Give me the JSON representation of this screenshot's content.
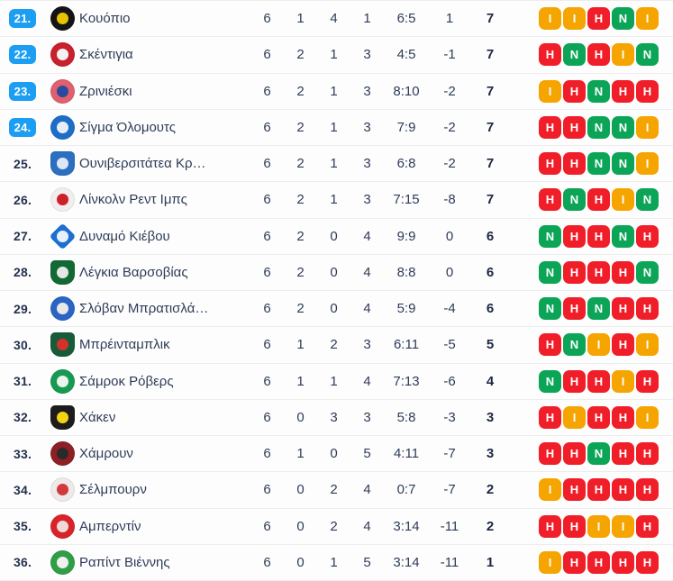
{
  "colors": {
    "win": "#0ca558",
    "draw": "#f5a400",
    "loss": "#f01e28",
    "position_badge": "#1c9ef3"
  },
  "form_letters": {
    "win": "Ν",
    "draw": "Ι",
    "loss": "Η"
  },
  "table": {
    "rows": [
      {
        "position": "21.",
        "highlighted": true,
        "team": "Κουόπιο",
        "played": 6,
        "wins": 1,
        "draws": 4,
        "losses": 1,
        "goals": "6:5",
        "diff": "1",
        "points": 7,
        "form": [
          "draw",
          "draw",
          "loss",
          "win",
          "draw"
        ],
        "logo": {
          "primary": "#141414",
          "secondary": "#e8c400",
          "shape": "circle"
        }
      },
      {
        "position": "22.",
        "highlighted": true,
        "team": "Σκέντιγια",
        "played": 6,
        "wins": 2,
        "draws": 1,
        "losses": 3,
        "goals": "4:5",
        "diff": "-1",
        "points": 7,
        "form": [
          "loss",
          "win",
          "loss",
          "draw",
          "win"
        ],
        "logo": {
          "primary": "#c8202c",
          "secondary": "#f2f2f2",
          "shape": "circle"
        }
      },
      {
        "position": "23.",
        "highlighted": true,
        "team": "Ζρινιέσκι",
        "played": 6,
        "wins": 2,
        "draws": 1,
        "losses": 3,
        "goals": "8:10",
        "diff": "-2",
        "points": 7,
        "form": [
          "draw",
          "loss",
          "win",
          "loss",
          "loss"
        ],
        "logo": {
          "primary": "#e0606e",
          "secondary": "#274a9e",
          "shape": "circle"
        }
      },
      {
        "position": "24.",
        "highlighted": true,
        "team": "Σίγμα Όλομουτς",
        "played": 6,
        "wins": 2,
        "draws": 1,
        "losses": 3,
        "goals": "7:9",
        "diff": "-2",
        "points": 7,
        "form": [
          "loss",
          "loss",
          "win",
          "win",
          "draw"
        ],
        "logo": {
          "primary": "#1e6ec8",
          "secondary": "#e8eef6",
          "shape": "circle"
        }
      },
      {
        "position": "25.",
        "highlighted": false,
        "team": "Ουνιβερσιτάτεα Κρ…",
        "played": 6,
        "wins": 2,
        "draws": 1,
        "losses": 3,
        "goals": "6:8",
        "diff": "-2",
        "points": 7,
        "form": [
          "loss",
          "loss",
          "win",
          "win",
          "draw"
        ],
        "logo": {
          "primary": "#2a6fc0",
          "secondary": "#dce8f5",
          "shape": "shield"
        }
      },
      {
        "position": "26.",
        "highlighted": false,
        "team": "Λίνκολν Ρεντ Ιμπς",
        "played": 6,
        "wins": 2,
        "draws": 1,
        "losses": 3,
        "goals": "7:15",
        "diff": "-8",
        "points": 7,
        "form": [
          "loss",
          "win",
          "loss",
          "draw",
          "win"
        ],
        "logo": {
          "primary": "#f2eeee",
          "secondary": "#cc2128",
          "shape": "circle"
        }
      },
      {
        "position": "27.",
        "highlighted": false,
        "team": "Δυναμό Κιέβου",
        "played": 6,
        "wins": 2,
        "draws": 0,
        "losses": 4,
        "goals": "9:9",
        "diff": "0",
        "points": 6,
        "form": [
          "win",
          "loss",
          "loss",
          "win",
          "loss"
        ],
        "logo": {
          "primary": "#1d6fd2",
          "secondary": "#e8f0fa",
          "shape": "diamond"
        }
      },
      {
        "position": "28.",
        "highlighted": false,
        "team": "Λέγκια Βαρσοβίας",
        "played": 6,
        "wins": 2,
        "draws": 0,
        "losses": 4,
        "goals": "8:8",
        "diff": "0",
        "points": 6,
        "form": [
          "win",
          "loss",
          "loss",
          "loss",
          "win"
        ],
        "logo": {
          "primary": "#116a34",
          "secondary": "#e6e6e6",
          "shape": "shield"
        }
      },
      {
        "position": "29.",
        "highlighted": false,
        "team": "Σλόβαν Μπρατισλά…",
        "played": 6,
        "wins": 2,
        "draws": 0,
        "losses": 4,
        "goals": "5:9",
        "diff": "-4",
        "points": 6,
        "form": [
          "win",
          "loss",
          "win",
          "loss",
          "loss"
        ],
        "logo": {
          "primary": "#2a65c4",
          "secondary": "#e8e8e8",
          "shape": "circle"
        }
      },
      {
        "position": "30.",
        "highlighted": false,
        "team": "Μπρέινταμπλικ",
        "played": 6,
        "wins": 1,
        "draws": 2,
        "losses": 3,
        "goals": "6:11",
        "diff": "-5",
        "points": 5,
        "form": [
          "loss",
          "win",
          "draw",
          "loss",
          "draw"
        ],
        "logo": {
          "primary": "#175c38",
          "secondary": "#d6302c",
          "shape": "shield"
        }
      },
      {
        "position": "31.",
        "highlighted": false,
        "team": "Σάμροκ Ρόβερς",
        "played": 6,
        "wins": 1,
        "draws": 1,
        "losses": 4,
        "goals": "7:13",
        "diff": "-6",
        "points": 4,
        "form": [
          "win",
          "loss",
          "loss",
          "draw",
          "loss"
        ],
        "logo": {
          "primary": "#169a52",
          "secondary": "#e9f4ec",
          "shape": "circle"
        }
      },
      {
        "position": "32.",
        "highlighted": false,
        "team": "Χάκεν",
        "played": 6,
        "wins": 0,
        "draws": 3,
        "losses": 3,
        "goals": "5:8",
        "diff": "-3",
        "points": 3,
        "form": [
          "loss",
          "draw",
          "loss",
          "loss",
          "draw"
        ],
        "logo": {
          "primary": "#1c1c1c",
          "secondary": "#f5d312",
          "shape": "shield"
        }
      },
      {
        "position": "33.",
        "highlighted": false,
        "team": "Χάμρουν",
        "played": 6,
        "wins": 1,
        "draws": 0,
        "losses": 5,
        "goals": "4:11",
        "diff": "-7",
        "points": 3,
        "form": [
          "loss",
          "loss",
          "win",
          "loss",
          "loss"
        ],
        "logo": {
          "primary": "#8e1f25",
          "secondary": "#2a2a2a",
          "shape": "circle"
        }
      },
      {
        "position": "34.",
        "highlighted": false,
        "team": "Σέλμπουρν",
        "played": 6,
        "wins": 0,
        "draws": 2,
        "losses": 4,
        "goals": "0:7",
        "diff": "-7",
        "points": 2,
        "form": [
          "draw",
          "loss",
          "loss",
          "loss",
          "loss"
        ],
        "logo": {
          "primary": "#efe9e9",
          "secondary": "#d03a3a",
          "shape": "circle"
        }
      },
      {
        "position": "35.",
        "highlighted": false,
        "team": "Αμπερντίν",
        "played": 6,
        "wins": 0,
        "draws": 2,
        "losses": 4,
        "goals": "3:14",
        "diff": "-11",
        "points": 2,
        "form": [
          "loss",
          "loss",
          "draw",
          "draw",
          "loss"
        ],
        "logo": {
          "primary": "#d8232a",
          "secondary": "#f0d9d9",
          "shape": "circle"
        }
      },
      {
        "position": "36.",
        "highlighted": false,
        "team": "Ραπίντ Βιέννης",
        "played": 6,
        "wins": 0,
        "draws": 1,
        "losses": 5,
        "goals": "3:14",
        "diff": "-11",
        "points": 1,
        "form": [
          "draw",
          "loss",
          "loss",
          "loss",
          "loss"
        ],
        "logo": {
          "primary": "#2f9e45",
          "secondary": "#f0f0f0",
          "shape": "circle"
        }
      }
    ]
  }
}
